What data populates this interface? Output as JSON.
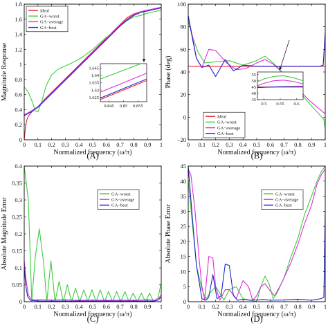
{
  "colors": {
    "Ideal": "#e8202a",
    "GA−worst": "#3dcc3d",
    "GA−average": "#e02be0",
    "GA−best": "#2222cc"
  },
  "chart_data": [
    {
      "type": "line",
      "panel_label": "(A)",
      "xlabel": "Normalized frequency (ω/π)",
      "ylabel": "Magnitude Response",
      "xlim": [
        0,
        1
      ],
      "ylim": [
        0,
        1.8
      ],
      "xticks": [
        "0",
        "0.1",
        "0.2",
        "0.3",
        "0.4",
        "0.5",
        "0.6",
        "0.7",
        "0.8",
        "0.9",
        "1"
      ],
      "yticks": [
        "0",
        "0.2",
        "0.4",
        "0.6",
        "0.8",
        "1",
        "1.2",
        "1.4",
        "1.6",
        "1.8"
      ],
      "legend": {
        "position": "top-left",
        "entries": [
          "Ideal",
          "GA−worst",
          "GA−average",
          "GA−best"
        ]
      },
      "series": [
        {
          "name": "Ideal",
          "x": [
            0,
            0.005,
            0.01,
            0.02,
            0.03,
            0.05,
            0.08,
            0.1,
            0.15,
            0.2,
            0.25,
            0.3,
            0.35,
            0.4,
            0.45,
            0.5,
            0.55,
            0.6,
            0.65,
            0.7,
            0.75,
            0.8,
            0.85,
            0.9,
            0.95,
            1
          ],
          "y": [
            0,
            0.09,
            0.18,
            0.27,
            0.31,
            0.36,
            0.41,
            0.44,
            0.54,
            0.63,
            0.72,
            0.81,
            0.9,
            0.99,
            1.08,
            1.17,
            1.26,
            1.35,
            1.44,
            1.53,
            1.62,
            1.67,
            1.7,
            1.72,
            1.74,
            1.76
          ]
        },
        {
          "name": "GA−worst",
          "x": [
            0,
            0.03,
            0.06,
            0.08,
            0.1,
            0.13,
            0.16,
            0.2,
            0.25,
            0.3,
            0.35,
            0.4,
            0.45,
            0.5,
            0.55,
            0.6,
            0.65,
            0.7,
            0.75,
            0.8,
            0.85,
            0.9,
            0.95,
            1
          ],
          "y": [
            0.7,
            0.63,
            0.5,
            0.38,
            0.37,
            0.52,
            0.72,
            0.86,
            0.94,
            0.98,
            1.02,
            1.07,
            1.13,
            1.2,
            1.28,
            1.36,
            1.43,
            1.51,
            1.58,
            1.63,
            1.65,
            1.68,
            1.7,
            1.72
          ]
        },
        {
          "name": "GA−average",
          "x": [
            0,
            0.05,
            0.1,
            0.15,
            0.2,
            0.25,
            0.3,
            0.35,
            0.4,
            0.45,
            0.5,
            0.55,
            0.6,
            0.65,
            0.7,
            0.75,
            0.8,
            0.85,
            0.9,
            0.95,
            1
          ],
          "y": [
            0.33,
            0.38,
            0.44,
            0.53,
            0.62,
            0.71,
            0.8,
            0.89,
            0.98,
            1.07,
            1.16,
            1.25,
            1.34,
            1.43,
            1.52,
            1.6,
            1.66,
            1.7,
            1.72,
            1.74,
            1.75
          ]
        },
        {
          "name": "GA−best",
          "x": [
            0,
            0.05,
            0.1,
            0.15,
            0.2,
            0.25,
            0.3,
            0.35,
            0.4,
            0.45,
            0.5,
            0.55,
            0.6,
            0.65,
            0.7,
            0.75,
            0.8,
            0.85,
            0.9,
            0.95,
            1
          ],
          "y": [
            0.32,
            0.37,
            0.43,
            0.52,
            0.61,
            0.7,
            0.79,
            0.88,
            0.97,
            1.06,
            1.15,
            1.24,
            1.33,
            1.42,
            1.51,
            1.59,
            1.65,
            1.69,
            1.71,
            1.73,
            1.75
          ]
        }
      ],
      "inset": {
        "xlim": [
          0.842,
          0.858
        ],
        "ylim": [
          1.622,
          1.648
        ],
        "xticks": [
          "0.845",
          "0.85",
          "0.855"
        ],
        "yticks": [
          "1.625",
          "1.63",
          "1.635",
          "1.64",
          "1.645"
        ],
        "series": [
          {
            "name": "GA−worst",
            "x": [
              0.842,
              0.858
            ],
            "y": [
              1.6375,
              1.6495
            ]
          },
          {
            "name": "GA−average",
            "x": [
              0.842,
              0.858
            ],
            "y": [
              1.6285,
              1.6415
            ]
          },
          {
            "name": "GA−best",
            "x": [
              0.842,
              0.858
            ],
            "y": [
              1.6245,
              1.6375
            ]
          },
          {
            "name": "Ideal",
            "x": [
              0.842,
              0.858
            ],
            "y": [
              1.6235,
              1.6365
            ]
          }
        ]
      }
    },
    {
      "type": "line",
      "panel_label": "(B)",
      "xlabel": "Normalized frequency (ω/π)",
      "ylabel": "Phase (deg)",
      "xlim": [
        0,
        1
      ],
      "ylim": [
        -20,
        100
      ],
      "xticks": [
        "0",
        "0.1",
        "0.2",
        "0.3",
        "0.4",
        "0.5",
        "0.6",
        "0.7",
        "0.8",
        "0.9",
        "1"
      ],
      "yticks": [
        "−20",
        "0",
        "20",
        "40",
        "60",
        "80",
        "100"
      ],
      "legend": {
        "position": "bottom-left",
        "entries": [
          "Ideal",
          "GA−worst",
          "GA−average",
          "GA−best"
        ]
      },
      "series": [
        {
          "name": "Ideal",
          "x": [
            0,
            1
          ],
          "y": [
            45,
            45
          ]
        },
        {
          "name": "GA−worst",
          "x": [
            0,
            0.03,
            0.07,
            0.12,
            0.2,
            0.3,
            0.4,
            0.5,
            0.56,
            0.62,
            0.7,
            0.8,
            0.9,
            0.96,
            0.99,
            1
          ],
          "y": [
            85,
            72,
            58,
            48,
            49,
            50,
            46,
            50,
            54,
            48,
            38,
            24,
            10,
            2,
            -2,
            -10
          ]
        },
        {
          "name": "GA−average",
          "x": [
            0,
            0.03,
            0.06,
            0.1,
            0.15,
            0.2,
            0.28,
            0.35,
            0.42,
            0.5,
            0.56,
            0.62,
            0.7,
            0.8,
            0.9,
            0.97,
            1
          ],
          "y": [
            89,
            72,
            52,
            44,
            60,
            59,
            48,
            42,
            43,
            48,
            51,
            47,
            38,
            25,
            13,
            6,
            3
          ]
        },
        {
          "name": "GA−best",
          "x": [
            0,
            0.03,
            0.06,
            0.1,
            0.15,
            0.2,
            0.27,
            0.33,
            0.4,
            0.5,
            0.6,
            0.7,
            0.8,
            0.9,
            0.96,
            0.985,
            1
          ],
          "y": [
            90,
            70,
            52,
            44,
            46,
            36,
            51,
            41,
            46,
            45,
            45,
            45,
            45,
            45,
            45,
            46,
            75
          ]
        }
      ],
      "inset": {
        "xlim": [
          0.48,
          0.62
        ],
        "ylim": [
          35,
          57
        ],
        "xticks": [
          "0.5",
          "0.55",
          "0.6"
        ],
        "yticks": [
          "35",
          "40",
          "45",
          "50",
          "55"
        ],
        "series": [
          {
            "name": "Ideal",
            "x": [
              0.48,
              0.62
            ],
            "y": [
              45,
              45
            ]
          },
          {
            "name": "GA−worst",
            "x": [
              0.48,
              0.5,
              0.53,
              0.56,
              0.59,
              0.62
            ],
            "y": [
              49,
              51.5,
              53.5,
              54,
              52.5,
              50
            ]
          },
          {
            "name": "GA−average",
            "x": [
              0.48,
              0.5,
              0.53,
              0.56,
              0.59,
              0.62
            ],
            "y": [
              46,
              48,
              50,
              50.5,
              49.5,
              47.5
            ]
          },
          {
            "name": "GA−best",
            "x": [
              0.48,
              0.55,
              0.62
            ],
            "y": [
              44.6,
              45.3,
              45.6
            ]
          }
        ]
      }
    },
    {
      "type": "line",
      "panel_label": "(C)",
      "xlabel": "Normalized frequency (ω/π)",
      "ylabel": "Absolute Magnitude Error",
      "xlim": [
        0,
        1
      ],
      "ylim": [
        0,
        0.4
      ],
      "xticks": [
        "0",
        "0.1",
        "0.2",
        "0.3",
        "0.4",
        "0.5",
        "0.6",
        "0.7",
        "0.8",
        "0.9",
        "1"
      ],
      "yticks": [
        "0",
        "0.05",
        "0.1",
        "0.15",
        "0.2",
        "0.25",
        "0.3",
        "0.35",
        "0.4"
      ],
      "legend": {
        "position": "top-right",
        "entries": [
          "GA−worst",
          "GA−average",
          "GA−best"
        ]
      },
      "series": [
        {
          "name": "GA−worst",
          "x": [
            0,
            0.03,
            0.055,
            0.08,
            0.11,
            0.14,
            0.165,
            0.195,
            0.225,
            0.255,
            0.285,
            0.315,
            0.345,
            0.375,
            0.405,
            0.435,
            0.465,
            0.495,
            0.525,
            0.555,
            0.585,
            0.615,
            0.645,
            0.675,
            0.705,
            0.735,
            0.765,
            0.795,
            0.825,
            0.855,
            0.885,
            0.915,
            0.945,
            0.975,
            1
          ],
          "y": [
            0.4,
            0.3,
            0,
            0.13,
            0.215,
            0.12,
            0,
            0.12,
            0,
            0.06,
            0,
            0.05,
            0,
            0.04,
            0,
            0.035,
            0,
            0.035,
            0,
            0.035,
            0,
            0.03,
            0,
            0.03,
            0,
            0.03,
            0,
            0.025,
            0,
            0.025,
            0,
            0.025,
            0,
            0.01,
            0.055
          ]
        },
        {
          "name": "GA−average",
          "x": [
            0,
            0.015,
            0.03,
            0.05,
            0.08,
            0.12,
            0.2,
            0.3,
            0.4,
            0.5,
            0.6,
            0.7,
            0.8,
            0.9,
            0.95,
            0.98,
            1
          ],
          "y": [
            0.12,
            0.06,
            0.02,
            0.008,
            0.005,
            0.006,
            0.005,
            0.006,
            0.004,
            0.005,
            0.004,
            0.005,
            0.004,
            0.006,
            0.004,
            0.01,
            0.02
          ]
        },
        {
          "name": "GA−best",
          "x": [
            0,
            0.012,
            0.025,
            0.045,
            0.07,
            0.12,
            0.2,
            0.3,
            0.4,
            0.5,
            0.6,
            0.7,
            0.8,
            0.9,
            0.95,
            0.98,
            1
          ],
          "y": [
            0.1,
            0.045,
            0.015,
            0.004,
            0.003,
            0.002,
            0.002,
            0.002,
            0.002,
            0.002,
            0.002,
            0.002,
            0.002,
            0.002,
            0.002,
            0.005,
            0.015
          ]
        }
      ]
    },
    {
      "type": "line",
      "panel_label": "(D)",
      "xlabel": "Normalized frequency (ω/π)",
      "ylabel": "Absolute Phase Error",
      "xlim": [
        0,
        1
      ],
      "ylim": [
        0,
        45
      ],
      "xticks": [
        "0",
        "0.1",
        "0.2",
        "0.3",
        "0.4",
        "0.5",
        "0.6",
        "0.7",
        "0.8",
        "0.9",
        "1"
      ],
      "yticks": [
        "0",
        "5",
        "10",
        "15",
        "20",
        "25",
        "30",
        "35",
        "40",
        "45"
      ],
      "legend": {
        "position": "top-right",
        "entries": [
          "GA−worst",
          "GA−average",
          "GA−best"
        ]
      },
      "series": [
        {
          "name": "GA−worst",
          "x": [
            0,
            0.03,
            0.06,
            0.1,
            0.13,
            0.16,
            0.2,
            0.23,
            0.26,
            0.3,
            0.35,
            0.4,
            0.45,
            0.5,
            0.53,
            0.56,
            0.59,
            0.62,
            0.65,
            0.7,
            0.75,
            0.8,
            0.85,
            0.9,
            0.94,
            0.97,
            1
          ],
          "y": [
            40,
            26,
            12,
            4,
            1,
            3,
            5,
            3,
            0.5,
            4,
            5,
            1,
            0.5,
            0,
            5,
            8.5,
            6,
            1,
            3,
            8,
            15,
            21,
            29,
            35,
            40,
            43,
            45
          ]
        },
        {
          "name": "GA−average",
          "x": [
            0,
            0.02,
            0.05,
            0.08,
            0.1,
            0.12,
            0.15,
            0.18,
            0.2,
            0.23,
            0.27,
            0.3,
            0.35,
            0.4,
            0.44,
            0.47,
            0.5,
            0.53,
            0.56,
            0.6,
            0.63,
            0.68,
            0.75,
            0.8,
            0.85,
            0.9,
            0.94,
            0.97,
            1
          ],
          "y": [
            44,
            42,
            30,
            14,
            5,
            0.5,
            15,
            14.5,
            5,
            0.5,
            4,
            4,
            1,
            7,
            5,
            0.5,
            2,
            5,
            6,
            3.5,
            2,
            6,
            13,
            19,
            26,
            32,
            39,
            42,
            44
          ]
        },
        {
          "name": "GA−best",
          "x": [
            0,
            0.03,
            0.06,
            0.1,
            0.13,
            0.15,
            0.18,
            0.21,
            0.24,
            0.27,
            0.3,
            0.33,
            0.36,
            0.4,
            0.45,
            0.5,
            0.55,
            0.6,
            0.7,
            0.8,
            0.9,
            0.97,
            0.99,
            1
          ],
          "y": [
            45,
            28,
            12,
            1,
            0.5,
            1.5,
            9,
            1,
            2,
            12.5,
            12,
            2,
            0.5,
            0.8,
            0.5,
            0.6,
            0.7,
            0.5,
            0.6,
            0.8,
            0.5,
            1,
            1.5,
            30
          ]
        }
      ]
    }
  ]
}
